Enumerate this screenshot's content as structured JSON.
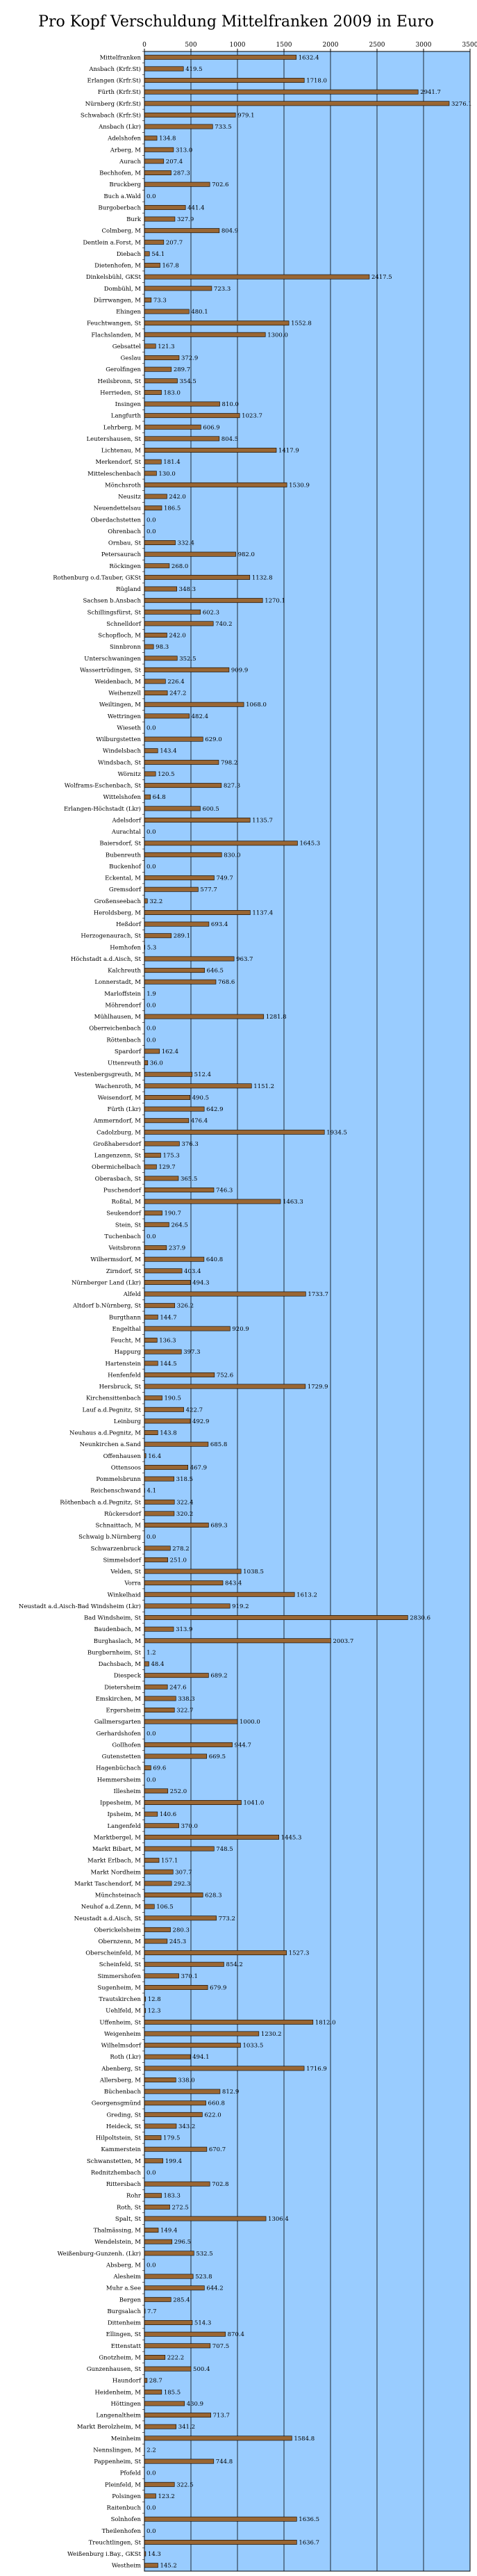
{
  "chart_data": {
    "type": "bar",
    "orientation": "horizontal",
    "title": "Pro Kopf Verschuldung Mittelfranken 2009 in Euro",
    "xlim": [
      0,
      3500
    ],
    "x_ticks": [
      0,
      500,
      1000,
      1500,
      2000,
      2500,
      3000,
      3500
    ],
    "grid": true,
    "legend": "none",
    "colors": {
      "plot_background": "#99ccff",
      "bar": "#996633",
      "bar_edge": "#000000",
      "gridline": "#000000"
    },
    "categories": [
      "Mittelfranken",
      "Ansbach (Krfr.St)",
      "Erlangen (Krfr.St)",
      "Fürth (Krfr.St)",
      "Nürnberg (Krfr.St)",
      "Schwabach (Krfr.St)",
      "Ansbach (Lkr)",
      "Adelshofen",
      "Arberg, M",
      "Aurach",
      "Bechhofen, M",
      "Bruckberg",
      "Buch a.Wald",
      "Burgoberbach",
      "Burk",
      "Colmberg, M",
      "Dentlein a.Forst, M",
      "Diebach",
      "Dietenhofen, M",
      "Dinkelsbühl, GKSt",
      "Dombühl, M",
      "Dürrwangen, M",
      "Ehingen",
      "Feuchtwangen, St",
      "Flachslanden, M",
      "Gebsattel",
      "Geslau",
      "Gerolfingen",
      "Heilsbronn, St",
      "Herrieden, St",
      "Insingen",
      "Langfurth",
      "Lehrberg, M",
      "Leutershausen, St",
      "Lichtenau, M",
      "Merkendorf, St",
      "Mitteleschenbach",
      "Mönchsroth",
      "Neusitz",
      "Neuendettelsau",
      "Oberdachstetten",
      "Ohrenbach",
      "Ornbau, St",
      "Petersaurach",
      "Röckingen",
      "Rothenburg o.d.Tauber, GKSt",
      "Rügland",
      "Sachsen b.Ansbach",
      "Schillingsfürst, St",
      "Schnelldorf",
      "Schopfloch, M",
      "Sinnbronn",
      "Unterschwaningen",
      "Wassertrüdingen, St",
      "Weidenbach, M",
      "Weihenzell",
      "Weiltingen, M",
      "Wettringen",
      "Wieseth",
      "Wilburgstetten",
      "Windelsbach",
      "Windsbach, St",
      "Wörnitz",
      "Wolframs-Eschenbach, St",
      "Wittelshofen",
      "Erlangen-Höchstadt (Lkr)",
      "Adelsdorf",
      "Aurachtal",
      "Baiersdorf, St",
      "Bubenreuth",
      "Buckenhof",
      "Eckental, M",
      "Gremsdorf",
      "Großenseebach",
      "Heroldsberg, M",
      "Heßdorf",
      "Herzogenaurach, St",
      "Hemhofen",
      "Höchstadt a.d.Aisch, St",
      "Kalchreuth",
      "Lonnerstadt, M",
      "Marloffstein",
      "Möhrendorf",
      "Mühlhausen, M",
      "Oberreichenbach",
      "Röttenbach",
      "Spardorf",
      "Uttenreuth",
      "Vestenbergsgreuth, M",
      "Wachenroth, M",
      "Weisendorf, M",
      "Fürth (Lkr)",
      "Ammerndorf, M",
      "Cadolzburg, M",
      "Großhabersdorf",
      "Langenzenn, St",
      "Obermichelbach",
      "Oberasbach, St",
      "Puschendorf",
      "Roßtal, M",
      "Seukendorf",
      "Stein, St",
      "Tuchenbach",
      "Veitsbronn",
      "Wilhermsdorf, M",
      "Zirndorf, St",
      "Nürnberger Land (Lkr)",
      "Alfeld",
      "Altdorf b.Nürnberg, St",
      "Burgthann",
      "Engelthal",
      "Feucht, M",
      "Happurg",
      "Hartenstein",
      "Henfenfeld",
      "Hersbruck, St",
      "Kirchensittenbach",
      "Lauf a.d.Pegnitz, St",
      "Leinburg",
      "Neuhaus a.d.Pegnitz, M",
      "Neunkirchen a.Sand",
      "Offenhausen",
      "Ottensoos",
      "Pommelsbrunn",
      "Reichenschwand",
      "Röthenbach a.d.Pegnitz, St",
      "Rückersdorf",
      "Schnaittach, M",
      "Schwaig b.Nürnberg",
      "Schwarzenbruck",
      "Simmelsdorf",
      "Velden, St",
      "Vorra",
      "Winkelhaid",
      "Neustadt a.d.Aisch-Bad Windsheim (Lkr)",
      "Bad Windsheim, St",
      "Baudenbach, M",
      "Burghaslach, M",
      "Burgbernheim, St",
      "Dachsbach, M",
      "Diespeck",
      "Dietersheim",
      "Emskirchen, M",
      "Ergersheim",
      "Gallmersgarten",
      "Gerhardshofen",
      "Gollhofen",
      "Gutenstetten",
      "Hagenbüchach",
      "Hemmersheim",
      "Illesheim",
      "Ippesheim, M",
      "Ipsheim, M",
      "Langenfeld",
      "Marktbergel, M",
      "Markt Bibart, M",
      "Markt Erlbach, M",
      "Markt Nordheim",
      "Markt Taschendorf, M",
      "Münchsteinach",
      "Neuhof a.d.Zenn, M",
      "Neustadt a.d.Aisch, St",
      "Oberickelsheim",
      "Obernzenn, M",
      "Oberscheinfeld, M",
      "Scheinfeld, St",
      "Simmershofen",
      "Sugenheim, M",
      "Trautskirchen",
      "Uehlfeld, M",
      "Uffenheim, St",
      "Weigenheim",
      "Wilhelmsdorf",
      "Roth (Lkr)",
      "Abenberg, St",
      "Allersberg, M",
      "Büchenbach",
      "Georgensgmünd",
      "Greding, St",
      "Heideck, St",
      "Hilpoltstein, St",
      "Kammerstein",
      "Schwanstetten, M",
      "Rednitzhembach",
      "Rittersbach",
      "Rohr",
      "Roth, St",
      "Spalt, St",
      "Thalmässing, M",
      "Wendelstein, M",
      "Weißenburg-Gunzenh. (Lkr)",
      "Absberg, M",
      "Alesheim",
      "Muhr a.See",
      "Bergen",
      "Burgsalach",
      "Dittenheim",
      "Ellingen, St",
      "Ettenstatt",
      "Gnotzheim, M",
      "Gunzenhausen, St",
      "Haundorf",
      "Heidenheim, M",
      "Höttingen",
      "Langenaltheim",
      "Markt Berolzheim, M",
      "Meinheim",
      "Nennslingen, M",
      "Pappenheim, St",
      "Pfofeld",
      "Pleinfeld, M",
      "Polsingen",
      "Raitenbuch",
      "Solnhofen",
      "Theilenhofen",
      "Treuchtlingen, St",
      "Weißenburg i.Bay., GKSt",
      "Westheim"
    ],
    "values": [
      1632.4,
      419.5,
      1718.0,
      2941.7,
      3276.1,
      979.1,
      733.5,
      134.8,
      313.0,
      207.4,
      287.3,
      702.6,
      0.0,
      441.4,
      327.9,
      804.9,
      207.7,
      54.1,
      167.8,
      2417.5,
      723.3,
      73.3,
      480.1,
      1552.8,
      1300.0,
      121.3,
      372.9,
      289.7,
      354.5,
      183.0,
      810.0,
      1023.7,
      606.9,
      804.5,
      1417.9,
      181.4,
      130.0,
      1530.9,
      242.0,
      186.5,
      0.0,
      0.0,
      332.4,
      982.0,
      268.0,
      1132.8,
      348.3,
      1270.1,
      602.3,
      740.2,
      242.0,
      98.3,
      352.5,
      909.9,
      226.4,
      247.2,
      1068.0,
      482.4,
      0.0,
      629.0,
      143.4,
      798.2,
      120.5,
      827.3,
      64.8,
      600.5,
      1135.7,
      0.0,
      1645.3,
      830.0,
      0.0,
      749.7,
      577.7,
      32.2,
      1137.4,
      693.4,
      289.1,
      5.3,
      963.7,
      646.5,
      768.6,
      1.9,
      0.0,
      1281.8,
      0.0,
      0.0,
      162.4,
      36.0,
      512.4,
      1151.2,
      490.5,
      642.9,
      476.4,
      1934.5,
      376.3,
      175.3,
      129.7,
      365.5,
      746.3,
      1463.3,
      190.7,
      264.5,
      0.0,
      237.9,
      640.8,
      403.4,
      494.3,
      1733.7,
      326.2,
      144.7,
      920.9,
      136.3,
      397.3,
      144.5,
      752.6,
      1729.9,
      190.5,
      422.7,
      492.9,
      143.8,
      685.8,
      16.4,
      467.9,
      318.5,
      4.1,
      322.4,
      320.2,
      689.3,
      0.0,
      278.2,
      251.0,
      1038.5,
      843.4,
      1613.2,
      919.2,
      2830.6,
      313.9,
      2003.7,
      1.2,
      48.4,
      689.2,
      247.6,
      338.3,
      322.7,
      1000.0,
      0.0,
      944.7,
      669.5,
      69.6,
      0.0,
      252.0,
      1041.0,
      140.6,
      370.0,
      1445.3,
      748.5,
      157.1,
      307.7,
      292.3,
      628.3,
      106.5,
      773.2,
      280.3,
      245.3,
      1527.3,
      854.2,
      370.1,
      679.9,
      12.8,
      12.3,
      1812.0,
      1230.2,
      1033.5,
      494.1,
      1716.9,
      338.0,
      812.9,
      660.8,
      622.0,
      343.2,
      179.5,
      670.7,
      199.4,
      0.0,
      702.8,
      183.3,
      272.5,
      1306.4,
      149.4,
      296.5,
      532.5,
      0.0,
      523.8,
      644.2,
      285.4,
      7.7,
      514.3,
      870.4,
      707.5,
      222.2,
      500.4,
      28.7,
      185.5,
      430.9,
      713.7,
      341.2,
      1584.8,
      2.2,
      744.8,
      0.0,
      322.5,
      123.2,
      0.0,
      1636.5,
      0.0,
      1636.7,
      14.3,
      145.2
    ]
  }
}
